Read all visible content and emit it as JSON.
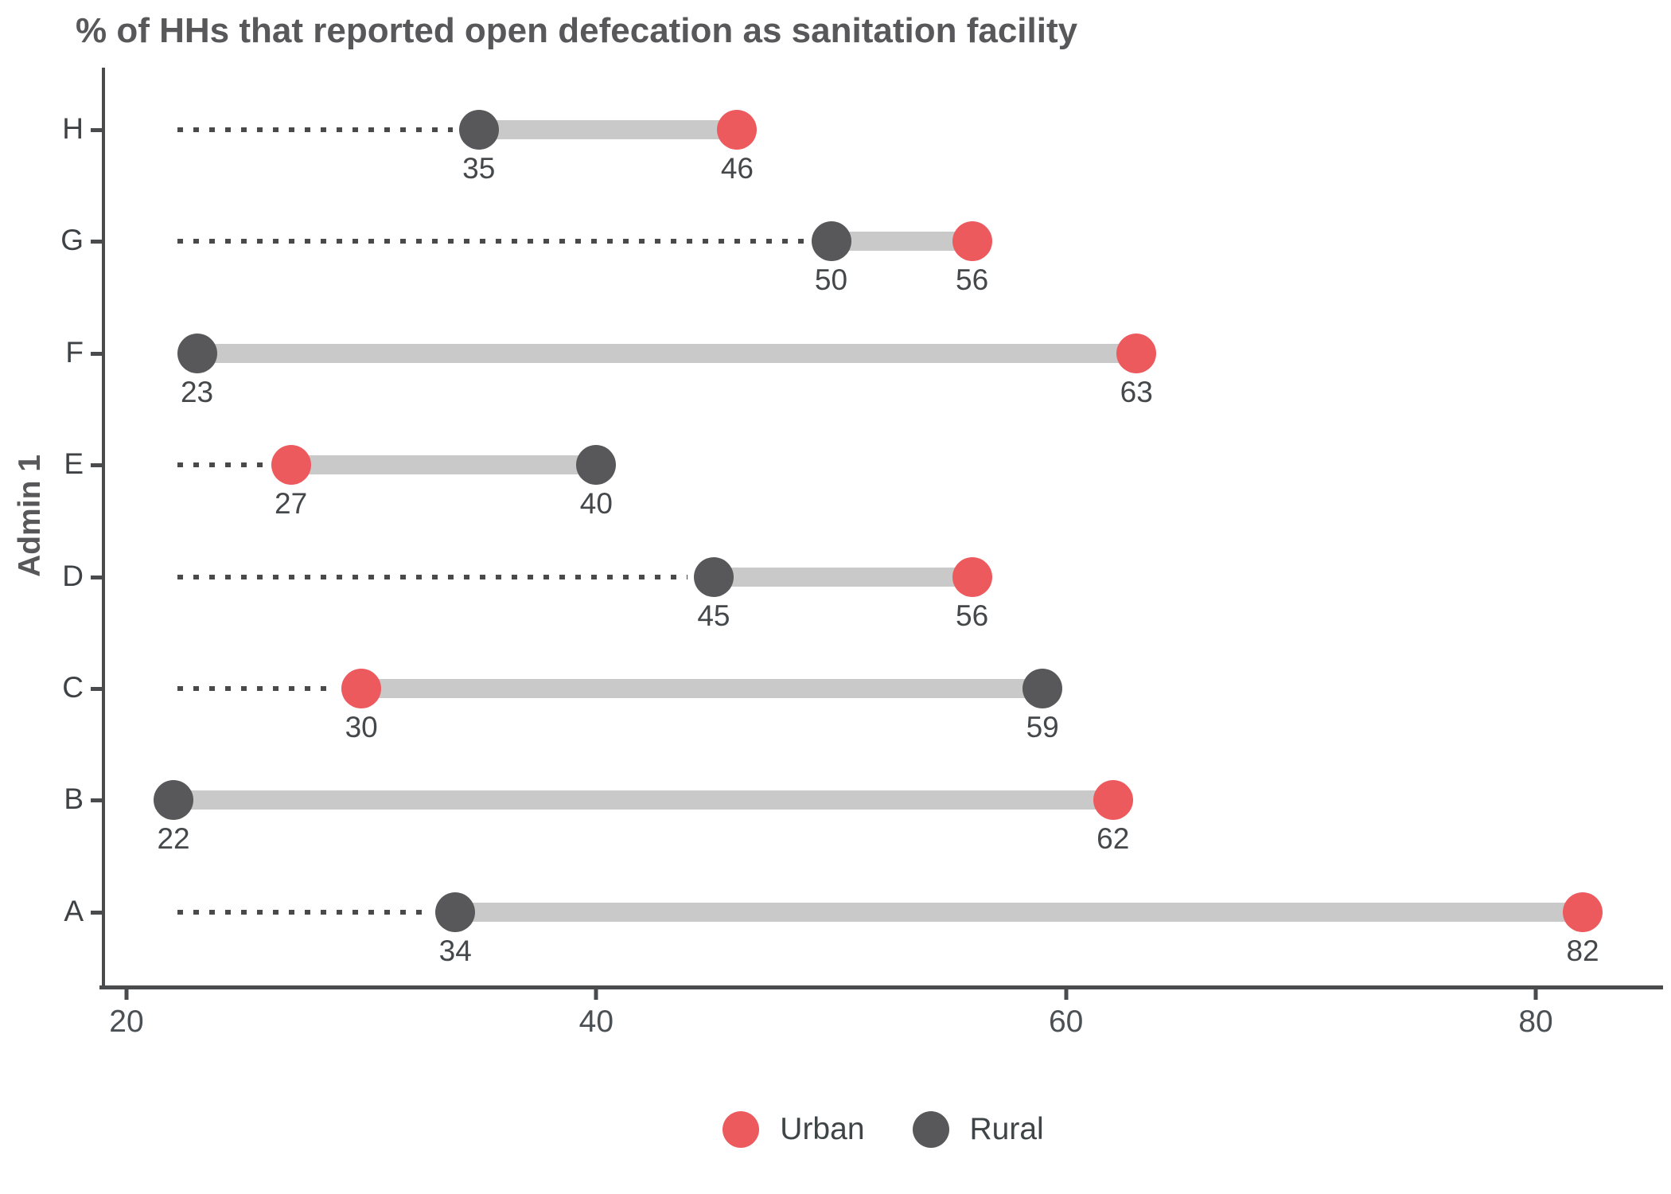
{
  "title": "% of HHs that reported open defecation as sanitation facility",
  "chart_data": {
    "type": "scatter",
    "variant": "dumbbell",
    "title": "% of HHs that reported open defecation as sanitation facility",
    "xlabel": "",
    "ylabel": "Admin 1",
    "x_ticks": [
      20,
      40,
      60,
      80
    ],
    "xlim": [
      19.0,
      85.4
    ],
    "grid": false,
    "legend_position": "bottom",
    "categories_top_to_bottom": [
      "H",
      "G",
      "F",
      "E",
      "D",
      "C",
      "B",
      "A"
    ],
    "series": [
      {
        "name": "Urban",
        "color": "#ED5A5E",
        "values_by_category": {
          "H": 46,
          "G": 56,
          "F": 63,
          "E": 27,
          "D": 56,
          "C": 30,
          "B": 62,
          "A": 82
        }
      },
      {
        "name": "Rural",
        "color": "#58585A",
        "values_by_category": {
          "H": 35,
          "G": 50,
          "F": 23,
          "E": 40,
          "D": 45,
          "C": 59,
          "B": 22,
          "A": 34
        }
      }
    ],
    "rows": [
      {
        "category": "H",
        "rural": 35,
        "urban": 46,
        "leader_dotted": true
      },
      {
        "category": "G",
        "rural": 50,
        "urban": 56,
        "leader_dotted": true
      },
      {
        "category": "F",
        "rural": 23,
        "urban": 63,
        "leader_dotted": false
      },
      {
        "category": "E",
        "rural": 40,
        "urban": 27,
        "leader_dotted": true
      },
      {
        "category": "D",
        "rural": 45,
        "urban": 56,
        "leader_dotted": true
      },
      {
        "category": "C",
        "rural": 59,
        "urban": 30,
        "leader_dotted": true
      },
      {
        "category": "B",
        "rural": 22,
        "urban": 62,
        "leader_dotted": false
      },
      {
        "category": "A",
        "rural": 34,
        "urban": 82,
        "leader_dotted": true
      }
    ]
  },
  "legend": {
    "items": [
      {
        "label": "Urban",
        "color": "#ED5A5E"
      },
      {
        "label": "Rural",
        "color": "#58585A"
      }
    ]
  },
  "colors": {
    "urban": "#ED5A5E",
    "rural": "#58585A",
    "connector": "#C9C9C9",
    "leader_dots": "#4A4A4A",
    "axis": "#4A4B4D",
    "title_text": "#58585A",
    "value_text": "#45484B"
  }
}
